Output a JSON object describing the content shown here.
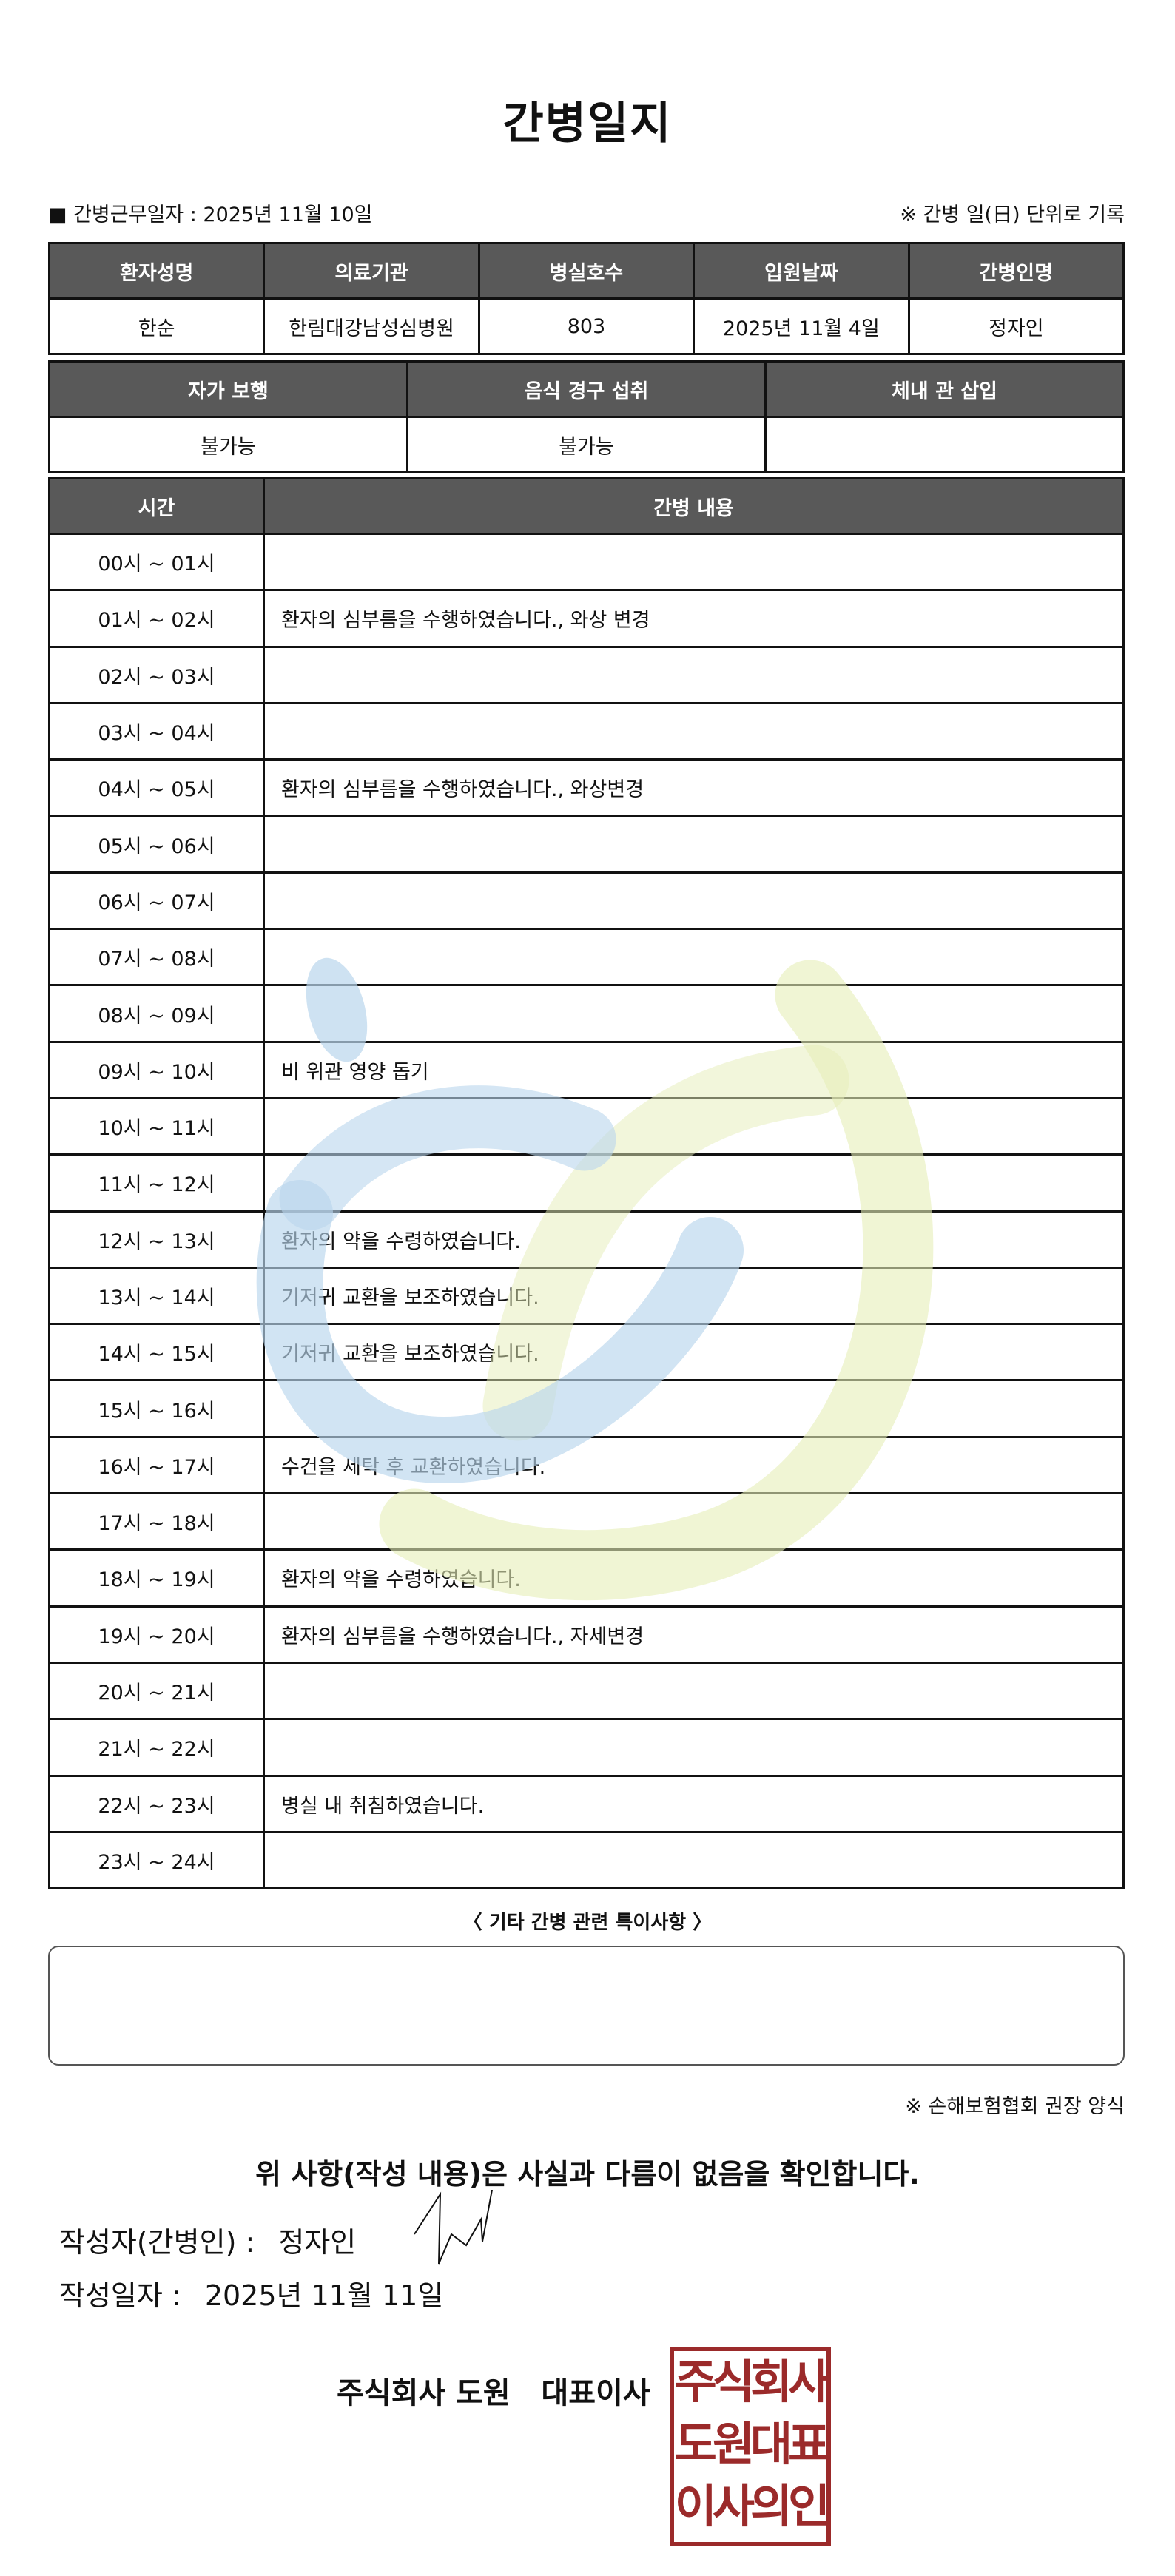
{
  "title": "간병일지",
  "info": {
    "work_date_label": "■ 간병근무일자 :  2025년 11월 10일",
    "note": "※ 간병 일(日) 단위로 기록"
  },
  "patient_table": {
    "headers": [
      "환자성명",
      "의료기관",
      "병실호수",
      "입원날짜",
      "간병인명"
    ],
    "values": [
      "한순",
      "한림대강남성심병원",
      "803",
      "2025년 11월 4일",
      "정자인"
    ]
  },
  "status_table": {
    "headers": [
      "자가 보행",
      "음식 경구 섭취",
      "체내 관 삽입"
    ],
    "values": [
      "불가능",
      "불가능",
      ""
    ]
  },
  "log_table": {
    "headers": [
      "시간",
      "간병 내용"
    ],
    "rows": [
      {
        "time": "00시 ~ 01시",
        "content": ""
      },
      {
        "time": "01시 ~ 02시",
        "content": "환자의 심부름을 수행하였습니다., 와상 변경"
      },
      {
        "time": "02시 ~ 03시",
        "content": ""
      },
      {
        "time": "03시 ~ 04시",
        "content": ""
      },
      {
        "time": "04시 ~ 05시",
        "content": "환자의 심부름을 수행하였습니다., 와상변경"
      },
      {
        "time": "05시 ~ 06시",
        "content": ""
      },
      {
        "time": "06시 ~ 07시",
        "content": ""
      },
      {
        "time": "07시 ~ 08시",
        "content": ""
      },
      {
        "time": "08시 ~ 09시",
        "content": ""
      },
      {
        "time": "09시 ~ 10시",
        "content": "비 위관 영양 돕기"
      },
      {
        "time": "10시 ~ 11시",
        "content": ""
      },
      {
        "time": "11시 ~ 12시",
        "content": ""
      },
      {
        "time": "12시 ~ 13시",
        "content": "환자의 약을 수령하였습니다."
      },
      {
        "time": "13시 ~ 14시",
        "content": "기저귀 교환을 보조하였습니다."
      },
      {
        "time": "14시 ~ 15시",
        "content": "기저귀 교환을 보조하였습니다."
      },
      {
        "time": "15시 ~ 16시",
        "content": ""
      },
      {
        "time": "16시 ~ 17시",
        "content": "수건을 세탁 후 교환하였습니다."
      },
      {
        "time": "17시 ~ 18시",
        "content": ""
      },
      {
        "time": "18시 ~ 19시",
        "content": "환자의 약을 수령하였습니다."
      },
      {
        "time": "19시 ~ 20시",
        "content": "환자의 심부름을 수행하였습니다., 자세변경"
      },
      {
        "time": "20시 ~ 21시",
        "content": ""
      },
      {
        "time": "21시 ~ 22시",
        "content": ""
      },
      {
        "time": "22시 ~ 23시",
        "content": "병실 내 취침하였습니다."
      },
      {
        "time": "23시 ~ 24시",
        "content": ""
      }
    ]
  },
  "notes": {
    "title": "〈 기타 간병 관련 특이사항 〉",
    "content": ""
  },
  "recommend": "※ 손해보험협회 권장 양식",
  "confirmation": "위 사항(작성 내용)은 사실과 다름이 없음을 확인합니다.",
  "signer": {
    "label": "작성자(간병인) :",
    "name": "정자인"
  },
  "written_date": {
    "label": "작성일자 :",
    "value": "2025년 11월 11일"
  },
  "company": "주식회사 도원   대표이사",
  "seal": {
    "lines": [
      "주식회사",
      "도원대표",
      "이사의인"
    ],
    "color": "#9b2a2a"
  },
  "colors": {
    "header_bg": "#595959",
    "watermark_blue": "#c5ddef",
    "watermark_green": "#eef3c8"
  }
}
